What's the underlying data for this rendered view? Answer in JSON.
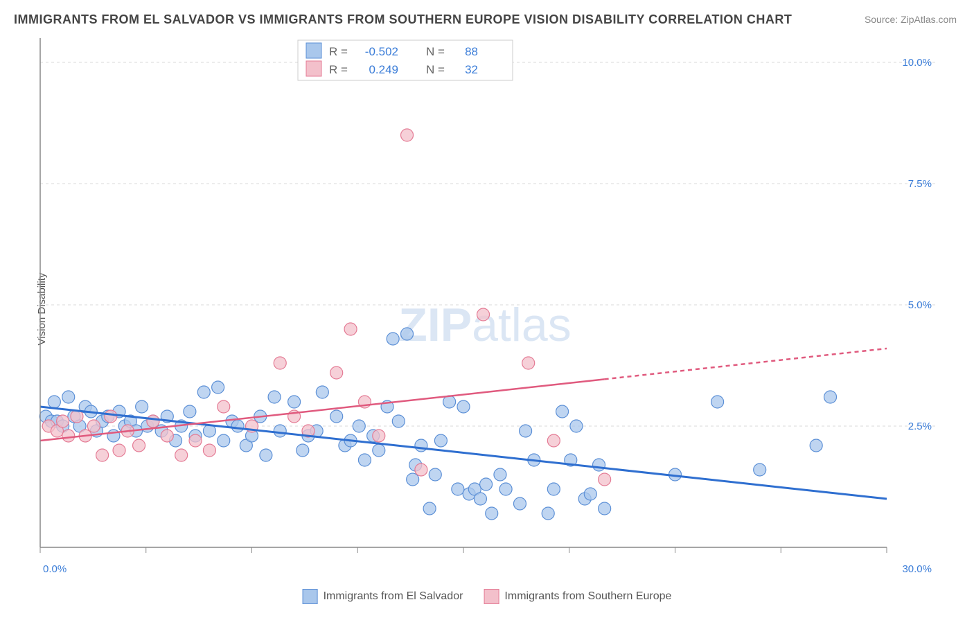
{
  "title": "IMMIGRANTS FROM EL SALVADOR VS IMMIGRANTS FROM SOUTHERN EUROPE VISION DISABILITY CORRELATION CHART",
  "source_label": "Source:",
  "source_name": "ZipAtlas.com",
  "ylabel": "Vision Disability",
  "watermark": "ZIPatlas",
  "chart": {
    "type": "scatter",
    "xlim": [
      0,
      30
    ],
    "ylim": [
      0,
      10.5
    ],
    "xticks": [
      0,
      3.75,
      7.5,
      11.25,
      15,
      18.75,
      22.5,
      26.25,
      30
    ],
    "yticks": [
      2.5,
      5.0,
      7.5,
      10.0
    ],
    "xtick_labels": {
      "0": "0.0%",
      "30": "30.0%"
    },
    "ytick_labels": [
      "2.5%",
      "5.0%",
      "7.5%",
      "10.0%"
    ],
    "grid_color": "#d8d8d8",
    "axis_color": "#888888",
    "background": "#ffffff",
    "tick_label_color": "#3b7dd8"
  },
  "series": [
    {
      "name": "Immigrants from El Salvador",
      "color_fill": "#a9c7ec",
      "color_stroke": "#5b8fd6",
      "marker_radius": 9,
      "marker_opacity": 0.75,
      "R": "-0.502",
      "N": "88",
      "trend": {
        "x1": 0,
        "y1": 2.9,
        "x2": 30,
        "y2": 1.0,
        "color": "#2f6fd0",
        "width": 3,
        "solid_to_x": 30
      },
      "points": [
        [
          0.2,
          2.7
        ],
        [
          0.4,
          2.6
        ],
        [
          0.5,
          3.0
        ],
        [
          0.6,
          2.6
        ],
        [
          0.8,
          2.5
        ],
        [
          1.0,
          3.1
        ],
        [
          1.2,
          2.7
        ],
        [
          1.4,
          2.5
        ],
        [
          1.6,
          2.9
        ],
        [
          1.8,
          2.8
        ],
        [
          2.0,
          2.4
        ],
        [
          2.2,
          2.6
        ],
        [
          2.4,
          2.7
        ],
        [
          2.6,
          2.3
        ],
        [
          2.8,
          2.8
        ],
        [
          3.0,
          2.5
        ],
        [
          3.2,
          2.6
        ],
        [
          3.4,
          2.4
        ],
        [
          3.6,
          2.9
        ],
        [
          3.8,
          2.5
        ],
        [
          4.0,
          2.6
        ],
        [
          4.3,
          2.4
        ],
        [
          4.5,
          2.7
        ],
        [
          4.8,
          2.2
        ],
        [
          5.0,
          2.5
        ],
        [
          5.3,
          2.8
        ],
        [
          5.5,
          2.3
        ],
        [
          5.8,
          3.2
        ],
        [
          6.0,
          2.4
        ],
        [
          6.3,
          3.3
        ],
        [
          6.5,
          2.2
        ],
        [
          6.8,
          2.6
        ],
        [
          7.0,
          2.5
        ],
        [
          7.3,
          2.1
        ],
        [
          7.5,
          2.3
        ],
        [
          7.8,
          2.7
        ],
        [
          8.0,
          1.9
        ],
        [
          8.3,
          3.1
        ],
        [
          8.5,
          2.4
        ],
        [
          9.0,
          3.0
        ],
        [
          9.3,
          2.0
        ],
        [
          9.5,
          2.3
        ],
        [
          9.8,
          2.4
        ],
        [
          10.0,
          3.2
        ],
        [
          10.5,
          2.7
        ],
        [
          10.8,
          2.1
        ],
        [
          11.0,
          2.2
        ],
        [
          11.3,
          2.5
        ],
        [
          11.5,
          1.8
        ],
        [
          11.8,
          2.3
        ],
        [
          12.0,
          2.0
        ],
        [
          12.3,
          2.9
        ],
        [
          12.5,
          4.3
        ],
        [
          12.7,
          2.6
        ],
        [
          13.0,
          4.4
        ],
        [
          13.2,
          1.4
        ],
        [
          13.3,
          1.7
        ],
        [
          13.5,
          2.1
        ],
        [
          13.8,
          0.8
        ],
        [
          14.0,
          1.5
        ],
        [
          14.2,
          2.2
        ],
        [
          14.5,
          3.0
        ],
        [
          14.8,
          1.2
        ],
        [
          15.0,
          2.9
        ],
        [
          15.2,
          1.1
        ],
        [
          15.4,
          1.2
        ],
        [
          15.6,
          1.0
        ],
        [
          15.8,
          1.3
        ],
        [
          16.0,
          0.7
        ],
        [
          16.3,
          1.5
        ],
        [
          16.5,
          1.2
        ],
        [
          17.0,
          0.9
        ],
        [
          17.2,
          2.4
        ],
        [
          17.5,
          1.8
        ],
        [
          18.0,
          0.7
        ],
        [
          18.2,
          1.2
        ],
        [
          18.5,
          2.8
        ],
        [
          18.8,
          1.8
        ],
        [
          19.0,
          2.5
        ],
        [
          19.3,
          1.0
        ],
        [
          19.5,
          1.1
        ],
        [
          19.8,
          1.7
        ],
        [
          20.0,
          0.8
        ],
        [
          22.5,
          1.5
        ],
        [
          24.0,
          3.0
        ],
        [
          25.5,
          1.6
        ],
        [
          27.5,
          2.1
        ],
        [
          28.0,
          3.1
        ]
      ]
    },
    {
      "name": "Immigrants from Southern Europe",
      "color_fill": "#f3c0cb",
      "color_stroke": "#e47a94",
      "marker_radius": 9,
      "marker_opacity": 0.75,
      "R": "0.249",
      "N": "32",
      "trend": {
        "x1": 0,
        "y1": 2.2,
        "x2": 30,
        "y2": 4.1,
        "color": "#e05a7e",
        "width": 2.5,
        "solid_to_x": 20,
        "dash": "6 5"
      },
      "points": [
        [
          0.3,
          2.5
        ],
        [
          0.6,
          2.4
        ],
        [
          0.8,
          2.6
        ],
        [
          1.0,
          2.3
        ],
        [
          1.3,
          2.7
        ],
        [
          1.6,
          2.3
        ],
        [
          1.9,
          2.5
        ],
        [
          2.2,
          1.9
        ],
        [
          2.5,
          2.7
        ],
        [
          2.8,
          2.0
        ],
        [
          3.1,
          2.4
        ],
        [
          3.5,
          2.1
        ],
        [
          4.0,
          2.6
        ],
        [
          4.5,
          2.3
        ],
        [
          5.0,
          1.9
        ],
        [
          5.5,
          2.2
        ],
        [
          6.0,
          2.0
        ],
        [
          6.5,
          2.9
        ],
        [
          7.5,
          2.5
        ],
        [
          8.5,
          3.8
        ],
        [
          9.0,
          2.7
        ],
        [
          9.5,
          2.4
        ],
        [
          10.5,
          3.6
        ],
        [
          11.0,
          4.5
        ],
        [
          11.5,
          3.0
        ],
        [
          12.0,
          2.3
        ],
        [
          13.0,
          8.5
        ],
        [
          13.5,
          1.6
        ],
        [
          15.7,
          4.8
        ],
        [
          17.3,
          3.8
        ],
        [
          18.2,
          2.2
        ],
        [
          20.0,
          1.4
        ]
      ]
    }
  ],
  "stats_legend": {
    "R_label": "R =",
    "N_label": "N ="
  }
}
